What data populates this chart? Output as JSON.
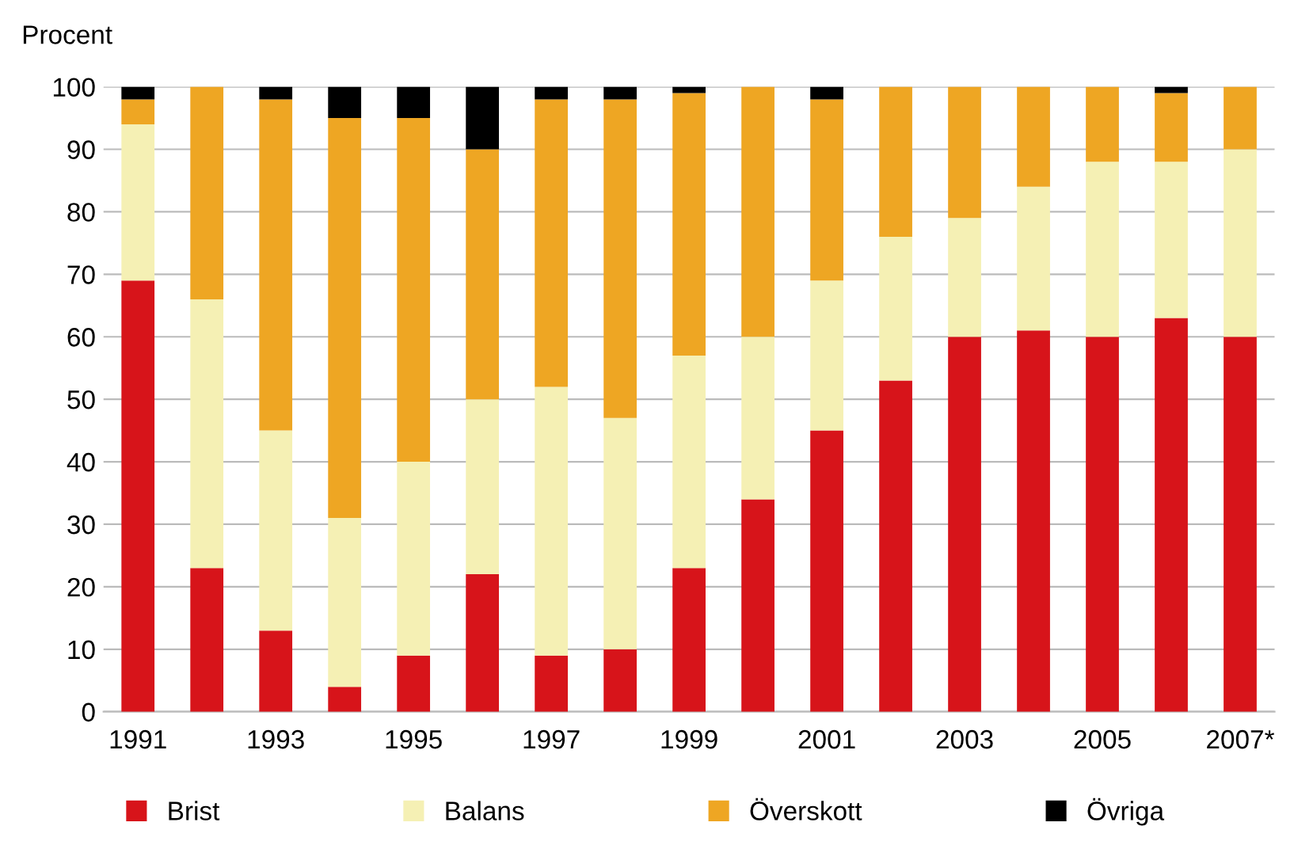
{
  "chart_data": {
    "type": "bar",
    "stacked": true,
    "ylabel": "Procent",
    "categories": [
      "1991",
      null,
      "1993",
      null,
      "1995",
      null,
      "1997",
      null,
      "1999",
      null,
      "2001",
      null,
      "2003",
      null,
      "2005",
      null,
      "2007*"
    ],
    "series": [
      {
        "name": "Brist",
        "color": "#d7141a",
        "values": [
          69,
          23,
          13,
          4,
          9,
          22,
          9,
          10,
          23,
          34,
          45,
          53,
          60,
          61,
          60,
          63,
          60
        ]
      },
      {
        "name": "Balans",
        "color": "#f5f0b4",
        "values": [
          25,
          43,
          32,
          27,
          31,
          28,
          43,
          37,
          34,
          26,
          24,
          23,
          19,
          23,
          28,
          25,
          30
        ]
      },
      {
        "name": "Överskott",
        "color": "#eea623",
        "values": [
          4,
          34,
          53,
          64,
          55,
          40,
          46,
          51,
          42,
          40,
          29,
          24,
          21,
          16,
          12,
          11,
          10
        ]
      },
      {
        "name": "Övriga",
        "color": "#000000",
        "values": [
          2,
          0,
          2,
          5,
          5,
          10,
          2,
          2,
          1,
          0,
          2,
          0,
          0,
          0,
          0,
          1,
          0
        ]
      }
    ],
    "ylim": [
      0,
      100
    ],
    "yticks": [
      0,
      10,
      20,
      30,
      40,
      50,
      60,
      70,
      80,
      90,
      100
    ],
    "grid": "y",
    "legend": "bottom"
  }
}
